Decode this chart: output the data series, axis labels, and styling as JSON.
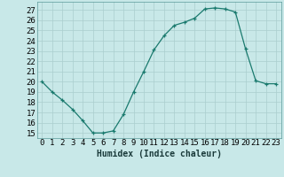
{
  "x": [
    0,
    1,
    2,
    3,
    4,
    5,
    6,
    7,
    8,
    9,
    10,
    11,
    12,
    13,
    14,
    15,
    16,
    17,
    18,
    19,
    20,
    21,
    22,
    23
  ],
  "y": [
    20,
    19,
    18.2,
    17.3,
    16.2,
    15.0,
    15.0,
    15.2,
    16.8,
    19.0,
    21.0,
    23.1,
    24.5,
    25.5,
    25.8,
    26.2,
    27.1,
    27.2,
    27.1,
    26.8,
    23.2,
    20.1,
    19.8,
    19.8
  ],
  "xlabel": "Humidex (Indice chaleur)",
  "xlim": [
    -0.5,
    23.5
  ],
  "ylim": [
    14.5,
    27.8
  ],
  "yticks": [
    15,
    16,
    17,
    18,
    19,
    20,
    21,
    22,
    23,
    24,
    25,
    26,
    27
  ],
  "xticks": [
    0,
    1,
    2,
    3,
    4,
    5,
    6,
    7,
    8,
    9,
    10,
    11,
    12,
    13,
    14,
    15,
    16,
    17,
    18,
    19,
    20,
    21,
    22,
    23
  ],
  "line_color": "#1a7a6e",
  "marker": "+",
  "bg_color": "#c8e8e8",
  "grid_color": "#aacece",
  "label_fontsize": 7,
  "tick_fontsize": 6.5
}
